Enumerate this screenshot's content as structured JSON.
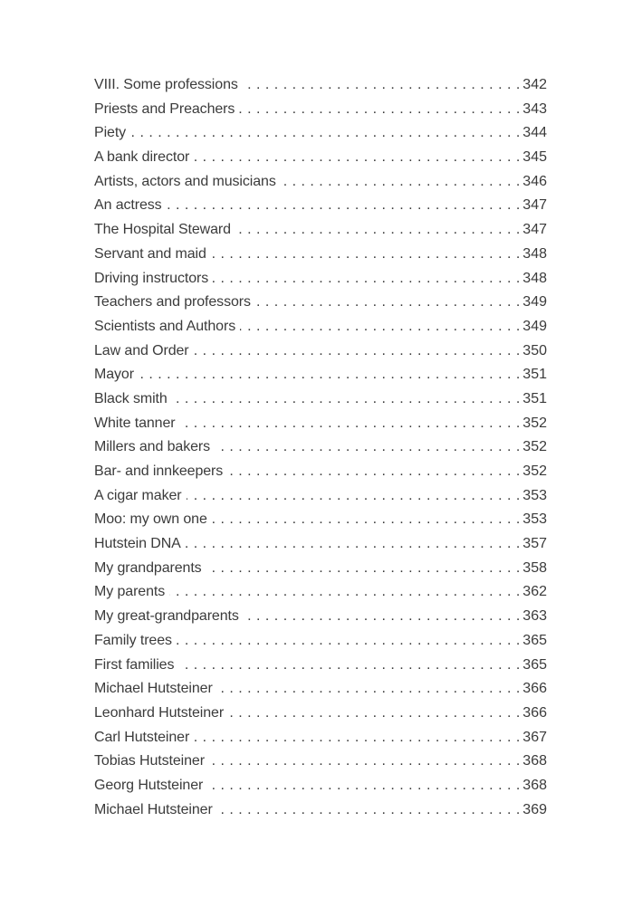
{
  "page": {
    "background_color": "#ffffff",
    "text_color": "#3b3b3b"
  },
  "toc": {
    "entries": [
      {
        "title": "VIII. Some professions",
        "page": "342"
      },
      {
        "title": "Priests and Preachers",
        "page": "343"
      },
      {
        "title": "Piety",
        "page": "344"
      },
      {
        "title": "A bank director",
        "page": "345"
      },
      {
        "title": "Artists, actors and musicians",
        "page": "346"
      },
      {
        "title": "An actress",
        "page": "347"
      },
      {
        "title": "The Hospital Steward",
        "page": "347"
      },
      {
        "title": "Servant and maid",
        "page": "348"
      },
      {
        "title": "Driving instructors",
        "page": "348"
      },
      {
        "title": "Teachers and professors",
        "page": "349"
      },
      {
        "title": "Scientists and Authors",
        "page": "349"
      },
      {
        "title": "Law and Order",
        "page": "350"
      },
      {
        "title": "Mayor",
        "page": "351"
      },
      {
        "title": "Black smith",
        "page": "351"
      },
      {
        "title": "White tanner",
        "page": "352"
      },
      {
        "title": "Millers and bakers",
        "page": "352"
      },
      {
        "title": "Bar- and innkeepers",
        "page": "352"
      },
      {
        "title": "A cigar maker",
        "page": "353"
      },
      {
        "title": "Moo: my own one",
        "page": "353"
      },
      {
        "title": "Hutstein DNA",
        "page": "357"
      },
      {
        "title": "My grandparents",
        "page": "358"
      },
      {
        "title": "My parents",
        "page": "362"
      },
      {
        "title": "My great-grandparents",
        "page": "363"
      },
      {
        "title": "Family trees",
        "page": "365"
      },
      {
        "title": "First families",
        "page": "365"
      },
      {
        "title": "Michael Hutsteiner",
        "page": "366"
      },
      {
        "title": "Leonhard Hutsteiner",
        "page": "366"
      },
      {
        "title": "Carl Hutsteiner",
        "page": "367"
      },
      {
        "title": "Tobias Hutsteiner",
        "page": "368"
      },
      {
        "title": "Georg Hutsteiner",
        "page": "368"
      },
      {
        "title": "Michael Hutsteiner",
        "page": "369"
      }
    ]
  }
}
